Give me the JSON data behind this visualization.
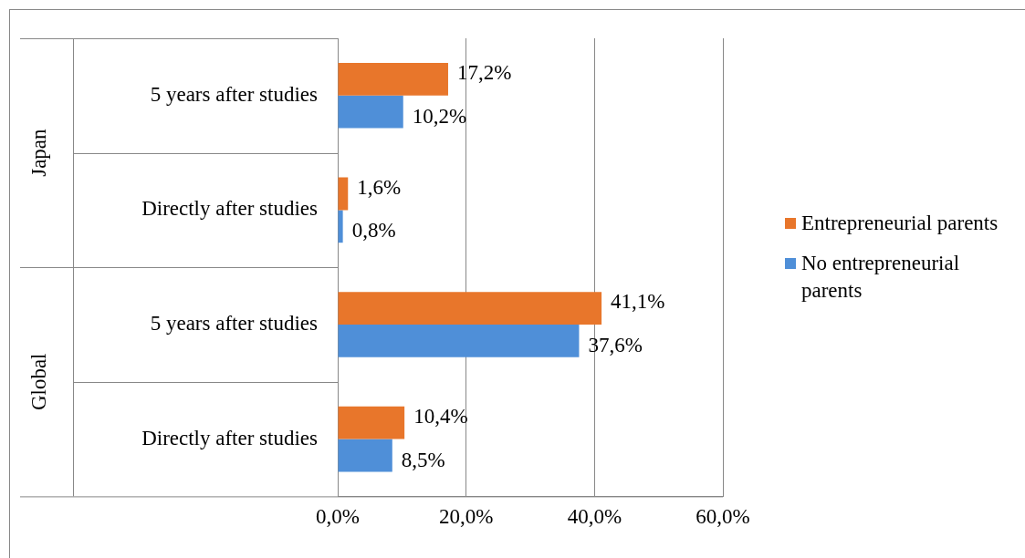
{
  "chart_data": {
    "type": "bar",
    "orientation": "horizontal",
    "categories": [
      "5 years after studies",
      "Directly after studies",
      "5 years after studies",
      "Directly after studies"
    ],
    "annotations": [
      "Japan",
      "Global"
    ],
    "series": [
      {
        "name": "Entrepreneurial parents",
        "color": "#e8762b",
        "values": [
          17.2,
          1.6,
          41.1,
          10.4
        ],
        "value_labels": [
          "17,2%",
          "1,6%",
          "41,1%",
          "10,4%"
        ]
      },
      {
        "name": "No entrepreneurial parents",
        "color": "#4f8fd8",
        "values": [
          10.2,
          0.8,
          37.6,
          8.5
        ],
        "value_labels": [
          "10,2%",
          "0,8%",
          "37,6%",
          "8,5%"
        ]
      }
    ],
    "xlim": [
      0,
      60
    ],
    "xticks": [
      {
        "value": 0,
        "label": "0,0%"
      },
      {
        "value": 20,
        "label": "20,0%"
      },
      {
        "value": 40,
        "label": "40,0%"
      },
      {
        "value": 60,
        "label": "60,0%"
      }
    ],
    "grid": "x",
    "legend": "right"
  }
}
